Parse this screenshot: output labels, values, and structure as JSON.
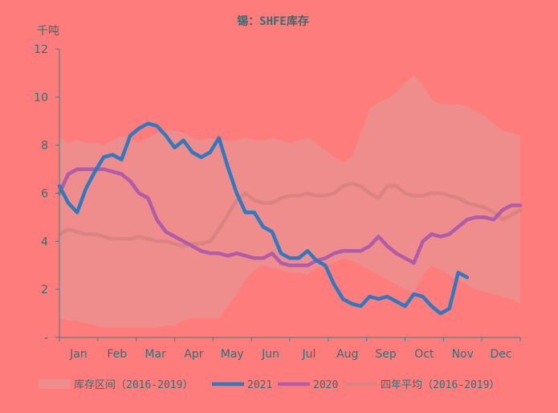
{
  "chart_data": {
    "type": "line",
    "title": "锡：SHFE库存",
    "ylabel": "千吨",
    "ylim": [
      0,
      12
    ],
    "y_ticks": [
      "-",
      "2",
      "4",
      "6",
      "8",
      "10",
      "12"
    ],
    "x_range": [
      0,
      52
    ],
    "month_labels": [
      "Jan",
      "Feb",
      "Mar",
      "Apr",
      "May",
      "Jun",
      "Jul",
      "Aug",
      "Sep",
      "Oct",
      "Nov",
      "Dec"
    ],
    "legend": [
      {
        "name": "库存区间（2016-2019）",
        "color": "#ef8d8d",
        "kind": "band"
      },
      {
        "name": "2021",
        "color": "#2f79be",
        "kind": "line"
      },
      {
        "name": "2020",
        "color": "#b05ca8",
        "kind": "line"
      },
      {
        "name": "四年平均（2016-2019）",
        "color": "#db8282",
        "kind": "line"
      }
    ],
    "band": {
      "name": "库存区间（2016-2019）",
      "color": "#ef8d8d",
      "points": [
        [
          0,
          0.8,
          8.3
        ],
        [
          1,
          0.7,
          8.1
        ],
        [
          2,
          0.7,
          8.2
        ],
        [
          3,
          0.6,
          8.1
        ],
        [
          4,
          0.5,
          8.1
        ],
        [
          5,
          0.4,
          8.0
        ],
        [
          6,
          0.4,
          8.2
        ],
        [
          7,
          0.4,
          8.4
        ],
        [
          8,
          0.4,
          8.3
        ],
        [
          9,
          0.4,
          8.1
        ],
        [
          10,
          0.4,
          8.3
        ],
        [
          11,
          0.4,
          8.5
        ],
        [
          12,
          0.5,
          8.6
        ],
        [
          13,
          0.5,
          8.6
        ],
        [
          14,
          0.7,
          8.5
        ],
        [
          15,
          0.8,
          8.3
        ],
        [
          16,
          0.8,
          8.2
        ],
        [
          17,
          0.8,
          8.3
        ],
        [
          18,
          0.8,
          8.2
        ],
        [
          19,
          1.3,
          8.2
        ],
        [
          20,
          1.8,
          8.2
        ],
        [
          21,
          2.4,
          8.3
        ],
        [
          22,
          2.8,
          8.2
        ],
        [
          23,
          3.0,
          8.2
        ],
        [
          24,
          2.9,
          8.3
        ],
        [
          25,
          2.8,
          8.2
        ],
        [
          26,
          2.7,
          8.1
        ],
        [
          27,
          2.7,
          8.2
        ],
        [
          28,
          2.6,
          8.3
        ],
        [
          29,
          2.9,
          8.1
        ],
        [
          30,
          3.0,
          7.8
        ],
        [
          31,
          3.1,
          7.5
        ],
        [
          32,
          3.3,
          7.3
        ],
        [
          33,
          3.2,
          7.5
        ],
        [
          34,
          3.0,
          8.5
        ],
        [
          35,
          2.8,
          9.5
        ],
        [
          36,
          2.6,
          9.8
        ],
        [
          37,
          2.4,
          9.9
        ],
        [
          38,
          2.2,
          10.2
        ],
        [
          39,
          2.0,
          10.6
        ],
        [
          40,
          1.9,
          10.9
        ],
        [
          41,
          2.6,
          10.5
        ],
        [
          42,
          3.0,
          9.9
        ],
        [
          43,
          2.8,
          9.7
        ],
        [
          44,
          2.6,
          9.7
        ],
        [
          45,
          2.4,
          9.7
        ],
        [
          46,
          2.2,
          9.6
        ],
        [
          47,
          2.0,
          9.4
        ],
        [
          48,
          1.9,
          9.2
        ],
        [
          49,
          1.8,
          8.9
        ],
        [
          50,
          1.7,
          8.6
        ],
        [
          51,
          1.6,
          8.5
        ],
        [
          52,
          1.4,
          8.4
        ]
      ]
    },
    "series": [
      {
        "name": "四年平均（2016-2019）",
        "color": "#db8282",
        "points": [
          [
            0,
            4.3
          ],
          [
            1,
            4.5
          ],
          [
            2,
            4.4
          ],
          [
            3,
            4.3
          ],
          [
            4,
            4.3
          ],
          [
            5,
            4.2
          ],
          [
            6,
            4.1
          ],
          [
            7,
            4.1
          ],
          [
            8,
            4.1
          ],
          [
            9,
            4.2
          ],
          [
            10,
            4.1
          ],
          [
            11,
            4.0
          ],
          [
            12,
            4.0
          ],
          [
            13,
            3.9
          ],
          [
            14,
            3.8
          ],
          [
            15,
            3.9
          ],
          [
            16,
            3.9
          ],
          [
            17,
            4.0
          ],
          [
            18,
            4.5
          ],
          [
            19,
            5.1
          ],
          [
            20,
            5.7
          ],
          [
            21,
            6.0
          ],
          [
            22,
            5.7
          ],
          [
            23,
            5.6
          ],
          [
            24,
            5.6
          ],
          [
            25,
            5.8
          ],
          [
            26,
            5.9
          ],
          [
            27,
            5.9
          ],
          [
            28,
            6.0
          ],
          [
            29,
            5.9
          ],
          [
            30,
            5.9
          ],
          [
            31,
            6.0
          ],
          [
            32,
            6.3
          ],
          [
            33,
            6.4
          ],
          [
            34,
            6.3
          ],
          [
            35,
            6.0
          ],
          [
            36,
            5.8
          ],
          [
            37,
            6.3
          ],
          [
            38,
            6.3
          ],
          [
            39,
            6.0
          ],
          [
            40,
            5.9
          ],
          [
            41,
            5.9
          ],
          [
            42,
            6.0
          ],
          [
            43,
            6.0
          ],
          [
            44,
            5.9
          ],
          [
            45,
            5.8
          ],
          [
            46,
            5.6
          ],
          [
            47,
            5.5
          ],
          [
            48,
            5.4
          ],
          [
            49,
            5.2
          ],
          [
            50,
            4.9
          ],
          [
            51,
            5.1
          ],
          [
            52,
            5.3
          ]
        ]
      },
      {
        "name": "2020",
        "color": "#b05ca8",
        "points": [
          [
            0,
            6.0
          ],
          [
            1,
            6.8
          ],
          [
            2,
            7.0
          ],
          [
            3,
            7.0
          ],
          [
            4,
            7.0
          ],
          [
            5,
            7.0
          ],
          [
            6,
            6.9
          ],
          [
            7,
            6.8
          ],
          [
            8,
            6.5
          ],
          [
            9,
            6.0
          ],
          [
            10,
            5.8
          ],
          [
            11,
            4.9
          ],
          [
            12,
            4.4
          ],
          [
            13,
            4.2
          ],
          [
            14,
            4.0
          ],
          [
            15,
            3.8
          ],
          [
            16,
            3.6
          ],
          [
            17,
            3.5
          ],
          [
            18,
            3.5
          ],
          [
            19,
            3.4
          ],
          [
            20,
            3.5
          ],
          [
            21,
            3.4
          ],
          [
            22,
            3.3
          ],
          [
            23,
            3.3
          ],
          [
            24,
            3.5
          ],
          [
            25,
            3.1
          ],
          [
            26,
            3.0
          ],
          [
            27,
            3.0
          ],
          [
            28,
            3.0
          ],
          [
            29,
            3.2
          ],
          [
            30,
            3.3
          ],
          [
            31,
            3.5
          ],
          [
            32,
            3.6
          ],
          [
            33,
            3.6
          ],
          [
            34,
            3.6
          ],
          [
            35,
            3.8
          ],
          [
            36,
            4.2
          ],
          [
            37,
            3.8
          ],
          [
            38,
            3.5
          ],
          [
            39,
            3.3
          ],
          [
            40,
            3.1
          ],
          [
            41,
            4.0
          ],
          [
            42,
            4.3
          ],
          [
            43,
            4.2
          ],
          [
            44,
            4.3
          ],
          [
            45,
            4.6
          ],
          [
            46,
            4.9
          ],
          [
            47,
            5.0
          ],
          [
            48,
            5.0
          ],
          [
            49,
            4.9
          ],
          [
            50,
            5.3
          ],
          [
            51,
            5.5
          ],
          [
            52,
            5.5
          ]
        ]
      },
      {
        "name": "2021",
        "color": "#2f79be",
        "points": [
          [
            0,
            6.3
          ],
          [
            1,
            5.6
          ],
          [
            2,
            5.2
          ],
          [
            3,
            6.2
          ],
          [
            4,
            6.9
          ],
          [
            5,
            7.5
          ],
          [
            6,
            7.6
          ],
          [
            7,
            7.4
          ],
          [
            8,
            8.4
          ],
          [
            9,
            8.7
          ],
          [
            10,
            8.9
          ],
          [
            11,
            8.8
          ],
          [
            12,
            8.4
          ],
          [
            13,
            7.9
          ],
          [
            14,
            8.2
          ],
          [
            15,
            7.7
          ],
          [
            16,
            7.5
          ],
          [
            17,
            7.7
          ],
          [
            18,
            8.3
          ],
          [
            19,
            7.1
          ],
          [
            20,
            6.0
          ],
          [
            21,
            5.2
          ],
          [
            22,
            5.2
          ],
          [
            23,
            4.6
          ],
          [
            24,
            4.4
          ],
          [
            25,
            3.5
          ],
          [
            26,
            3.3
          ],
          [
            27,
            3.3
          ],
          [
            28,
            3.6
          ],
          [
            29,
            3.2
          ],
          [
            30,
            3.0
          ],
          [
            31,
            2.2
          ],
          [
            32,
            1.6
          ],
          [
            33,
            1.4
          ],
          [
            34,
            1.3
          ],
          [
            35,
            1.7
          ],
          [
            36,
            1.6
          ],
          [
            37,
            1.7
          ],
          [
            38,
            1.5
          ],
          [
            39,
            1.3
          ],
          [
            40,
            1.8
          ],
          [
            41,
            1.7
          ],
          [
            42,
            1.3
          ],
          [
            43,
            1.0
          ],
          [
            44,
            1.2
          ],
          [
            45,
            2.7
          ],
          [
            46,
            2.5
          ]
        ]
      }
    ]
  }
}
